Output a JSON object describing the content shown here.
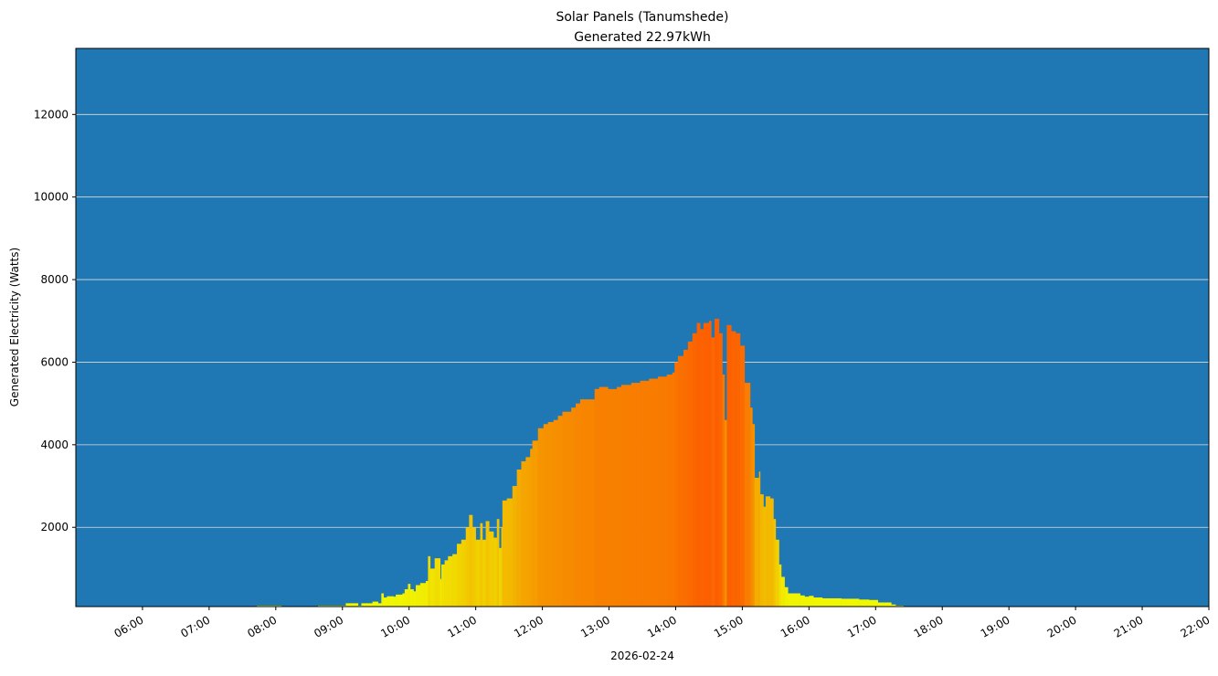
{
  "chart_data": {
    "type": "bar",
    "title": "Solar Panels (Tanumshede)",
    "subtitle": "Generated 22.97kWh",
    "xlabel": "2026-02-24",
    "ylabel": "Generated Electricity (Watts)",
    "xlim": [
      "05:00",
      "22:00"
    ],
    "ylim": [
      80,
      13600
    ],
    "grid": "horizontal",
    "background_color": "#1f77b4",
    "grid_color": "#dddddd",
    "colormap": "yellow (low) to orange-red (high)",
    "x_ticks": [
      "06:00",
      "07:00",
      "08:00",
      "09:00",
      "10:00",
      "11:00",
      "12:00",
      "13:00",
      "14:00",
      "15:00",
      "16:00",
      "17:00",
      "18:00",
      "19:00",
      "20:00",
      "21:00",
      "22:00"
    ],
    "y_ticks": [
      2000,
      4000,
      6000,
      8000,
      10000,
      12000
    ],
    "end_time": "17:25",
    "points": [
      [
        "07:43",
        60
      ],
      [
        "08:05",
        0
      ],
      [
        "08:38",
        70
      ],
      [
        "09:03",
        160
      ],
      [
        "09:14",
        80
      ],
      [
        "09:17",
        160
      ],
      [
        "09:27",
        200
      ],
      [
        "09:32",
        160
      ],
      [
        "09:35",
        400
      ],
      [
        "09:37",
        300
      ],
      [
        "09:40",
        330
      ],
      [
        "09:46",
        320
      ],
      [
        "09:48",
        370
      ],
      [
        "09:54",
        400
      ],
      [
        "09:56",
        500
      ],
      [
        "09:59",
        630
      ],
      [
        "10:01",
        500
      ],
      [
        "10:04",
        450
      ],
      [
        "10:06",
        600
      ],
      [
        "10:10",
        650
      ],
      [
        "10:15",
        700
      ],
      [
        "10:17",
        1300
      ],
      [
        "10:19",
        1000
      ],
      [
        "10:23",
        1250
      ],
      [
        "10:25",
        1250
      ],
      [
        "10:28",
        750
      ],
      [
        "10:29",
        1100
      ],
      [
        "10:32",
        1200
      ],
      [
        "10:35",
        1300
      ],
      [
        "10:39",
        1350
      ],
      [
        "10:43",
        1600
      ],
      [
        "10:47",
        1700
      ],
      [
        "10:51",
        2000
      ],
      [
        "10:54",
        2300
      ],
      [
        "10:57",
        2000
      ],
      [
        "11:00",
        1700
      ],
      [
        "11:04",
        2100
      ],
      [
        "11:06",
        1700
      ],
      [
        "11:09",
        2150
      ],
      [
        "11:12",
        1900
      ],
      [
        "11:16",
        1750
      ],
      [
        "11:19",
        2200
      ],
      [
        "11:21",
        1500
      ],
      [
        "11:23",
        2000
      ],
      [
        "11:24",
        2650
      ],
      [
        "11:28",
        2700
      ],
      [
        "11:33",
        3000
      ],
      [
        "11:37",
        3400
      ],
      [
        "11:41",
        3600
      ],
      [
        "11:45",
        3700
      ],
      [
        "11:49",
        3900
      ],
      [
        "11:51",
        4100
      ],
      [
        "11:56",
        4400
      ],
      [
        "12:01",
        4500
      ],
      [
        "12:05",
        4550
      ],
      [
        "12:10",
        4600
      ],
      [
        "12:14",
        4700
      ],
      [
        "12:18",
        4800
      ],
      [
        "12:26",
        4900
      ],
      [
        "12:30",
        5000
      ],
      [
        "12:34",
        5100
      ],
      [
        "12:43",
        5100
      ],
      [
        "12:47",
        5350
      ],
      [
        "12:51",
        5400
      ],
      [
        "12:55",
        5400
      ],
      [
        "12:59",
        5350
      ],
      [
        "13:07",
        5400
      ],
      [
        "13:11",
        5450
      ],
      [
        "13:20",
        5500
      ],
      [
        "13:28",
        5550
      ],
      [
        "13:36",
        5600
      ],
      [
        "13:44",
        5650
      ],
      [
        "13:52",
        5700
      ],
      [
        "13:57",
        5750
      ],
      [
        "13:59",
        6000
      ],
      [
        "14:02",
        6150
      ],
      [
        "14:07",
        6300
      ],
      [
        "14:11",
        6500
      ],
      [
        "14:15",
        6700
      ],
      [
        "14:19",
        6950
      ],
      [
        "14:22",
        6800
      ],
      [
        "14:25",
        6950
      ],
      [
        "14:30",
        7000
      ],
      [
        "14:32",
        6600
      ],
      [
        "14:35",
        7050
      ],
      [
        "14:39",
        6700
      ],
      [
        "14:42",
        5700
      ],
      [
        "14:44",
        4600
      ],
      [
        "14:46",
        6900
      ],
      [
        "14:50",
        6750
      ],
      [
        "14:54",
        6700
      ],
      [
        "14:58",
        6400
      ],
      [
        "15:02",
        5500
      ],
      [
        "15:07",
        4900
      ],
      [
        "15:09",
        4500
      ],
      [
        "15:11",
        3200
      ],
      [
        "15:15",
        3350
      ],
      [
        "15:16",
        2800
      ],
      [
        "15:19",
        2500
      ],
      [
        "15:21",
        2750
      ],
      [
        "15:25",
        2700
      ],
      [
        "15:28",
        2200
      ],
      [
        "15:30",
        1700
      ],
      [
        "15:33",
        1100
      ],
      [
        "15:35",
        800
      ],
      [
        "15:38",
        550
      ],
      [
        "15:41",
        400
      ],
      [
        "15:48",
        400
      ],
      [
        "15:52",
        350
      ],
      [
        "15:56",
        320
      ],
      [
        "16:00",
        340
      ],
      [
        "16:04",
        300
      ],
      [
        "16:12",
        280
      ],
      [
        "16:29",
        270
      ],
      [
        "16:45",
        250
      ],
      [
        "16:54",
        240
      ],
      [
        "17:02",
        180
      ],
      [
        "17:14",
        130
      ],
      [
        "17:18",
        100
      ],
      [
        "17:22",
        40
      ]
    ]
  }
}
